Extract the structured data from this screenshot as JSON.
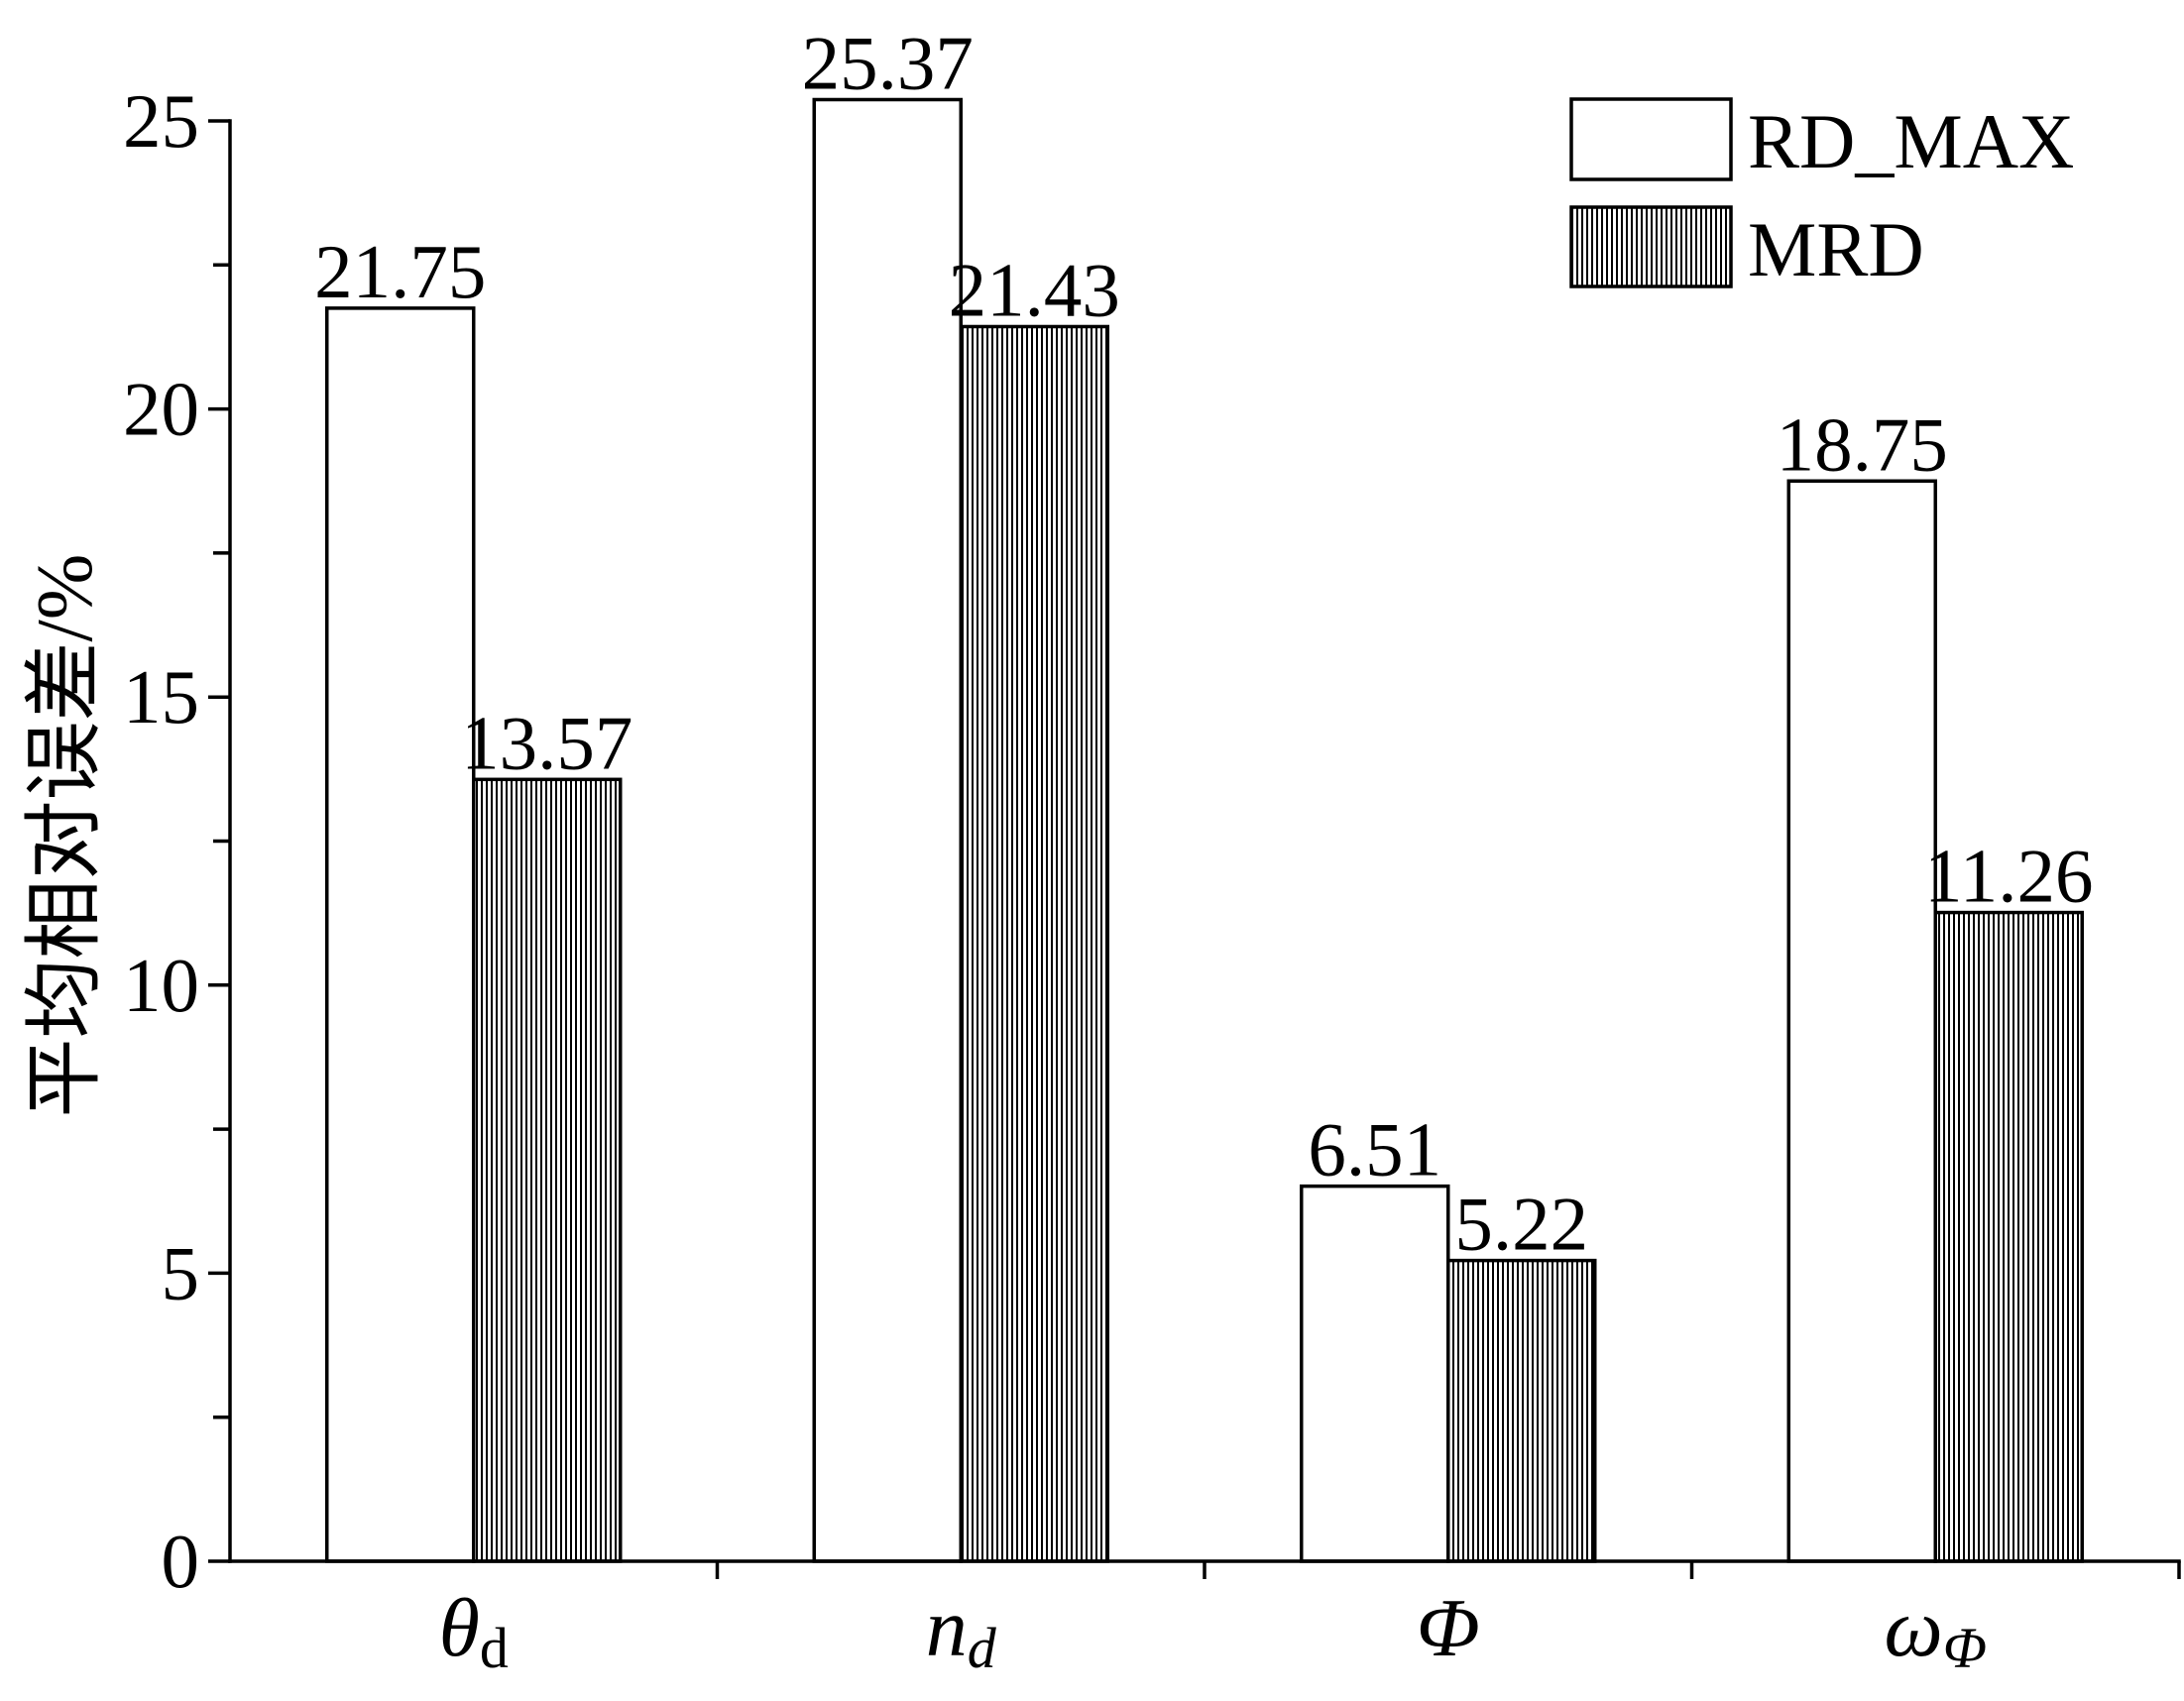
{
  "chart_data": {
    "type": "bar",
    "ylabel": "平均相对误差/%",
    "categories": [
      {
        "symbol": "θ",
        "subscript": "d"
      },
      {
        "symbol": "n",
        "subscript": "d"
      },
      {
        "symbol": "Φ"
      },
      {
        "symbol": "ω",
        "subscript": "Φ"
      }
    ],
    "series": [
      {
        "name": "RD_MAX",
        "values": [
          21.75,
          25.37,
          6.51,
          18.75
        ],
        "color": "#ffffff"
      },
      {
        "name": "MRD",
        "values": [
          13.57,
          21.43,
          5.22,
          11.26
        ],
        "color": "#000000"
      }
    ],
    "ylim": [
      0,
      25
    ],
    "yticks": [
      0,
      5,
      10,
      15,
      20,
      25
    ],
    "yticks_minor": [
      2.5,
      7.5,
      12.5,
      17.5,
      22.5
    ],
    "grid": false,
    "legend": "top-right"
  },
  "colors": {
    "axes": "#000000",
    "background": "#ffffff"
  }
}
